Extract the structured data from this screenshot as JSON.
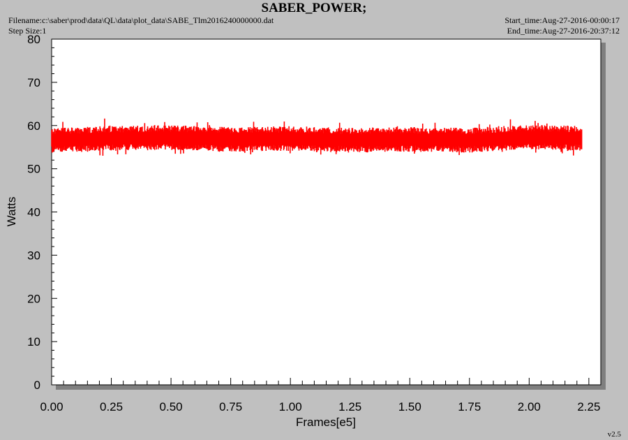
{
  "header": {
    "title": "SABER_POWER;",
    "filename": "Filename:c:\\saber\\prod\\data\\QL\\data\\plot_data\\SABE_Tlm2016240000000.dat",
    "step_size": "Step Size:1",
    "start_time": "Start_time:Aug-27-2016-00:00:17",
    "end_time": "End_time:Aug-27-2016-20:37:12"
  },
  "version": "v2.5",
  "colors": {
    "background": "#c0c0c0",
    "plot_area": "#ffffff",
    "series": "#ff0000",
    "shadow": "#7f7f7f"
  },
  "chart_data": {
    "type": "line",
    "title": "SABER_POWER;",
    "xlabel": "Frames[e5]",
    "ylabel": "Watts",
    "xlim": [
      0.0,
      2.3
    ],
    "ylim": [
      0,
      80
    ],
    "x_ticks": [
      "0.00",
      "0.25",
      "0.50",
      "0.75",
      "1.00",
      "1.25",
      "1.50",
      "1.75",
      "2.00",
      "2.25"
    ],
    "y_ticks": [
      "0",
      "10",
      "20",
      "30",
      "40",
      "50",
      "60",
      "70",
      "80"
    ],
    "grid": false,
    "series": [
      {
        "color": "#ff0000",
        "x_range": [
          0.0,
          2.22
        ],
        "center": [
          [
            0.0,
            56.5
          ],
          [
            0.25,
            57.0
          ],
          [
            0.5,
            57.2
          ],
          [
            0.75,
            56.8
          ],
          [
            1.0,
            57.0
          ],
          [
            1.25,
            56.6
          ],
          [
            1.5,
            56.8
          ],
          [
            1.75,
            56.6
          ],
          [
            2.0,
            57.3
          ],
          [
            2.22,
            57.0
          ]
        ],
        "min": 53,
        "max": 62,
        "typical_band": [
          54.5,
          59.5
        ]
      }
    ]
  }
}
